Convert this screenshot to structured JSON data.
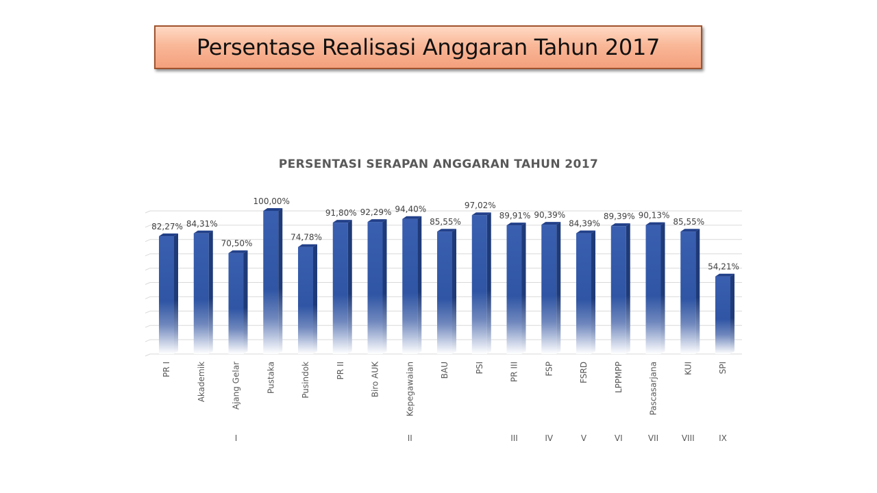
{
  "slide": {
    "title": "Persentase Realisasi Anggaran Tahun 2017"
  },
  "chart_data": {
    "type": "bar",
    "title": "PERSENTASI SERAPAN ANGGARAN TAHUN 2017",
    "categories": [
      "PR I",
      "Akademik",
      "Ajang Gelar",
      "Pustaka",
      "Pusindok",
      "PR II",
      "Biro AUK",
      "Kepegawaian",
      "BAU",
      "PSI",
      "PR III",
      "FSP",
      "FSRD",
      "LPPMPP",
      "Pascasarjana",
      "KUI",
      "SPI"
    ],
    "values": [
      82.27,
      84.31,
      70.5,
      100.0,
      74.78,
      91.8,
      92.29,
      94.4,
      85.55,
      97.02,
      89.91,
      90.39,
      84.39,
      89.39,
      90.13,
      85.55,
      54.21
    ],
    "data_labels": [
      "82,27%",
      "84,31%",
      "70,50%",
      "100,00%",
      "74,78%",
      "91,80%",
      "92,29%",
      "94,40%",
      "85,55%",
      "97,02%",
      "89,91%",
      "90,39%",
      "84,39%",
      "89,39%",
      "90,13%",
      "85,55%",
      "54,21%"
    ],
    "groups": [
      {
        "label": "I",
        "start": 0,
        "end": 4
      },
      {
        "label": "II",
        "start": 5,
        "end": 9
      },
      {
        "label": "III",
        "start": 10,
        "end": 10
      },
      {
        "label": "IV",
        "start": 11,
        "end": 11
      },
      {
        "label": "V",
        "start": 12,
        "end": 12
      },
      {
        "label": "VI",
        "start": 13,
        "end": 13
      },
      {
        "label": "VII",
        "start": 14,
        "end": 14
      },
      {
        "label": "VIII",
        "start": 15,
        "end": 15
      },
      {
        "label": "IX",
        "start": 16,
        "end": 16
      }
    ],
    "ylim": [
      0,
      100
    ],
    "grid": true,
    "legend": "none",
    "colors": {
      "bar_top": "#3a5fb0",
      "bar_mid": "#2f55a4",
      "bar_side": "#1e3a78",
      "bar_cap": "#22408a",
      "grid": "#d9d9d9"
    }
  }
}
